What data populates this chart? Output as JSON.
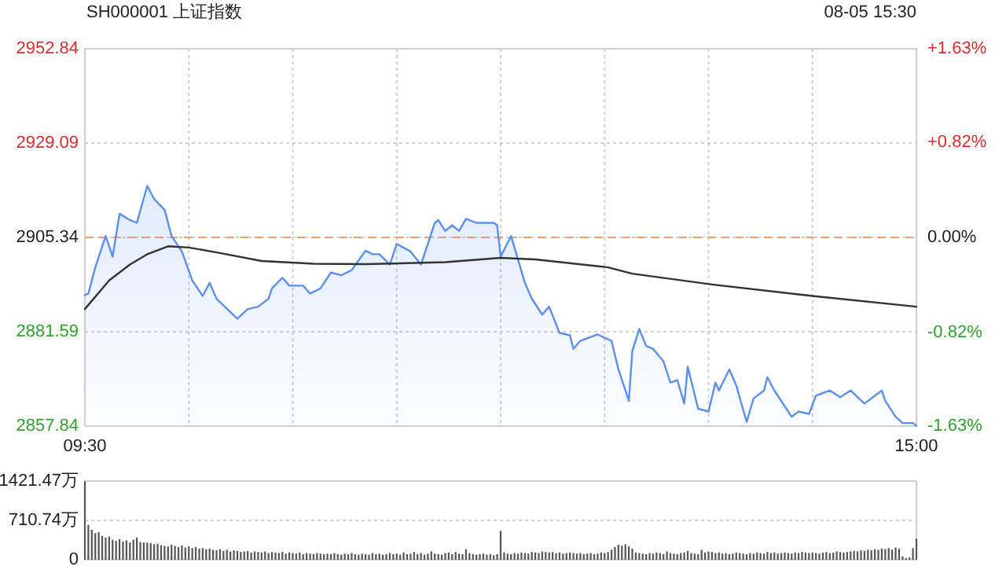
{
  "chart_data": [
    {
      "type": "line",
      "title": "SH000001 上证指数",
      "subtitle": "08-05 15:30",
      "categories": [
        "09:30",
        null,
        null,
        null,
        null,
        null,
        null,
        null,
        null,
        null,
        null,
        null,
        null,
        null,
        null,
        null,
        null,
        null,
        null,
        null,
        null,
        null,
        null,
        null,
        null,
        null,
        null,
        null,
        null,
        null,
        null,
        null,
        null,
        null,
        null,
        null,
        null,
        null,
        null,
        null,
        null,
        null,
        null,
        null,
        null,
        null,
        null,
        null,
        null,
        null,
        null,
        null,
        null,
        null,
        null,
        null,
        null,
        null,
        null,
        null,
        null,
        null,
        null,
        null,
        null,
        null,
        null,
        null,
        null,
        null,
        null,
        null,
        null,
        null,
        null,
        null,
        null,
        null,
        null,
        null,
        null,
        null,
        null,
        null,
        null,
        null,
        null,
        null,
        null,
        null,
        null,
        null,
        null,
        null,
        null,
        null,
        null,
        null,
        null,
        null,
        null,
        null,
        null,
        null,
        null,
        null,
        null,
        null,
        null,
        null,
        null,
        null,
        null,
        null,
        null,
        null,
        null,
        null,
        null,
        null,
        null,
        null,
        null,
        null,
        null,
        null,
        null,
        null,
        null,
        null,
        null,
        null,
        null,
        null,
        null,
        null,
        null,
        null,
        null,
        null,
        null,
        null,
        null,
        null,
        null,
        null,
        null,
        null,
        null,
        null,
        null,
        null,
        null,
        null,
        null,
        null,
        null,
        null,
        null,
        null,
        null,
        null,
        null,
        null,
        null,
        null,
        null,
        null,
        null,
        null,
        null,
        null,
        null,
        null,
        null,
        null,
        null,
        null,
        null,
        null,
        null,
        null,
        null,
        null,
        null,
        null,
        null,
        null,
        null,
        null,
        null,
        null,
        null,
        null,
        null,
        null,
        null,
        null,
        null,
        null,
        null,
        null,
        null,
        null,
        null,
        null,
        null,
        null,
        null,
        null,
        null,
        null,
        null,
        null,
        null,
        null,
        null,
        null,
        null,
        null,
        null,
        null,
        null,
        null,
        null,
        null,
        null,
        null,
        null,
        null,
        null,
        null,
        null,
        null,
        null,
        null,
        null,
        null,
        null,
        null,
        "15:00"
      ],
      "ylim": [
        2857.84,
        2952.84
      ],
      "yticks": [
        2857.84,
        2881.59,
        2905.34,
        2929.09,
        2952.84
      ],
      "y2lim": [
        -1.63,
        1.63
      ],
      "y2ticks": [
        {
          "value": -1.63,
          "label": "-1.63%"
        },
        {
          "value": -0.82,
          "label": "-0.82%"
        },
        {
          "value": 0,
          "label": "0.00%"
        },
        {
          "value": 0.82,
          "label": "+0.82%"
        },
        {
          "value": 1.63,
          "label": "+1.63%"
        }
      ],
      "grid": true,
      "ref_lines": [
        {
          "axis": "y",
          "value": 2905.34,
          "color": "#f0a070",
          "line_style": "dashed"
        }
      ],
      "series": [
        {
          "type": "area",
          "color": "#5b8ff0",
          "values": [
            2890.8,
            2891.2,
            null,
            2897.8,
            null,
            null,
            2905.7,
            null,
            2900.5,
            null,
            2911.3,
            null,
            null,
            2909.7,
            null,
            2909.0,
            null,
            null,
            2918.3,
            null,
            2915.0,
            null,
            null,
            2912.3,
            null,
            2905.7,
            null,
            null,
            2901.8,
            null,
            null,
            2894.5,
            null,
            null,
            2890.6,
            null,
            2893.9,
            null,
            2889.9,
            null,
            null,
            null,
            null,
            null,
            2884.9,
            null,
            null,
            2887.3,
            null,
            null,
            2887.9,
            null,
            null,
            2889.9,
            2892.5,
            null,
            null,
            2895.2,
            null,
            2893.2,
            null,
            null,
            null,
            2893.2,
            null,
            2891.2,
            null,
            null,
            2892.5,
            null,
            null,
            2896.5,
            null,
            null,
            2895.8,
            null,
            null,
            2897.1,
            null,
            null,
            null,
            2902.0,
            null,
            2901.1,
            null,
            2901.1,
            null,
            null,
            2898.5,
            null,
            2903.7,
            null,
            null,
            null,
            2901.8,
            null,
            null,
            2898.5,
            null,
            null,
            null,
            2909.0,
            2909.7,
            null,
            2907.0,
            null,
            2908.4,
            null,
            2907.0,
            null,
            2910.0,
            null,
            null,
            2909.0,
            null,
            null,
            null,
            null,
            2909.0,
            2908.4,
            2900.5,
            null,
            null,
            2905.7,
            null,
            null,
            null,
            2893.9,
            null,
            2889.9,
            null,
            null,
            2885.9,
            null,
            2887.9,
            null,
            null,
            2881.3,
            null,
            null,
            2880.7,
            2877.3,
            null,
            2879.3,
            null,
            null,
            null,
            null,
            2880.9,
            null,
            null,
            null,
            2879.3,
            null,
            2872.1,
            null,
            null,
            2864.2,
            2876.7,
            null,
            2882.3,
            null,
            2878.0,
            null,
            2877.3,
            null,
            null,
            2874.1,
            null,
            2868.8,
            null,
            2869.4,
            null,
            2863.5,
            2872.8,
            null,
            null,
            2862.2,
            null,
            null,
            2861.5,
            null,
            2868.8,
            2866.8,
            null,
            null,
            2872.1,
            null,
            2868.1,
            null,
            null,
            2858.9,
            null,
            2864.8,
            null,
            null,
            2866.8,
            2870.1,
            null,
            2866.8,
            null,
            null,
            null,
            null,
            2860.2,
            null,
            2861.5,
            null,
            null,
            2860.9,
            null,
            2865.5,
            null,
            null,
            null,
            2866.8,
            null,
            null,
            2865.1,
            null,
            null,
            2866.8,
            null,
            null,
            null,
            2863.5,
            null,
            null,
            null,
            null,
            2866.8,
            2864.2,
            null,
            null,
            2860.2,
            null,
            2858.6,
            null,
            null,
            2858.6,
            2857.9
          ]
        },
        {
          "type": "line",
          "color": "#333333",
          "values": [
            2887.3,
            null,
            null,
            null,
            null,
            null,
            null,
            2894.5,
            null,
            null,
            null,
            null,
            null,
            2898.5,
            null,
            null,
            null,
            null,
            2901.1,
            null,
            null,
            null,
            null,
            null,
            2903.1,
            null,
            null,
            null,
            null,
            null,
            2902.8,
            null,
            null,
            null,
            null,
            null,
            null,
            null,
            null,
            2901.4,
            null,
            null,
            null,
            null,
            null,
            null,
            null,
            null,
            null,
            null,
            null,
            2899.4,
            null,
            null,
            null,
            null,
            null,
            null,
            null,
            null,
            null,
            null,
            null,
            null,
            null,
            null,
            2898.7,
            null,
            null,
            null,
            null,
            null,
            null,
            null,
            null,
            null,
            null,
            null,
            null,
            null,
            null,
            2898.6,
            null,
            null,
            null,
            null,
            null,
            null,
            null,
            null,
            null,
            null,
            null,
            null,
            null,
            null,
            null,
            null,
            null,
            null,
            null,
            null,
            null,
            null,
            2899.1,
            null,
            null,
            null,
            null,
            null,
            null,
            null,
            null,
            null,
            null,
            null,
            null,
            null,
            null,
            null,
            2900.2,
            null,
            null,
            null,
            null,
            null,
            null,
            null,
            null,
            null,
            2899.8,
            null,
            null,
            null,
            null,
            null,
            null,
            null,
            null,
            null,
            null,
            null,
            null,
            null,
            null,
            null,
            null,
            null,
            null,
            null,
            null,
            2897.8,
            null,
            null,
            null,
            null,
            null,
            null,
            2896.2,
            null,
            null,
            null,
            null,
            null,
            null,
            null,
            null,
            null,
            null,
            null,
            null,
            null,
            null,
            null,
            null,
            null,
            null,
            null,
            null,
            null,
            null,
            2893.5,
            null,
            null,
            null,
            null,
            null,
            null,
            null,
            null,
            null,
            null,
            null,
            null,
            null,
            null,
            null,
            null,
            null,
            null,
            null,
            null,
            null,
            null,
            null,
            null,
            null,
            null,
            null,
            null,
            2890.6,
            null,
            null,
            null,
            null,
            null,
            null,
            null,
            null,
            null,
            null,
            null,
            null,
            null,
            null,
            null,
            null,
            null,
            null,
            null,
            null,
            null,
            null,
            null,
            null,
            null,
            null,
            null,
            null,
            null,
            2887.9
          ]
        }
      ]
    },
    {
      "type": "bar",
      "color": "#555555",
      "grid": "y",
      "tick_labels": "y",
      "ylim": [
        0,
        1421.47
      ],
      "yticks": [
        0,
        {
          "value": 710.74,
          "label": "710.74万"
        },
        {
          "value": 1421.47,
          "label": "1421.47万"
        }
      ],
      "categories": [
        null,
        null,
        null,
        null,
        null,
        null,
        null,
        null,
        null,
        null,
        null,
        null,
        null,
        null,
        null,
        null,
        null,
        null,
        null,
        null,
        null,
        null,
        null,
        null,
        null,
        null,
        null,
        null,
        null,
        null,
        null,
        null,
        null,
        null,
        null,
        null,
        null,
        null,
        null,
        null,
        null,
        null,
        null,
        null,
        null,
        null,
        null,
        null,
        null,
        null,
        null,
        null,
        null,
        null,
        null,
        null,
        null,
        null,
        null,
        null,
        null,
        null,
        null,
        null,
        null,
        null,
        null,
        null,
        null,
        null,
        null,
        null,
        null,
        null,
        null,
        null,
        null,
        null,
        null,
        null,
        null,
        null,
        null,
        null,
        null,
        null,
        null,
        null,
        null,
        null,
        null,
        null,
        null,
        null,
        null,
        null,
        null,
        null,
        null,
        null,
        null,
        null,
        null,
        null,
        null,
        null,
        null,
        null,
        null,
        null,
        null,
        null,
        null,
        null,
        null,
        null,
        null,
        null,
        null,
        null,
        null,
        null,
        null,
        null,
        null,
        null,
        null,
        null,
        null,
        null,
        null,
        null,
        null,
        null,
        null,
        null,
        null,
        null,
        null,
        null,
        null,
        null,
        null,
        null,
        null,
        null,
        null,
        null,
        null,
        null,
        null,
        null,
        null,
        null,
        null,
        null,
        null,
        null,
        null,
        null,
        null,
        null,
        null,
        null,
        null,
        null,
        null,
        null,
        null,
        null,
        null,
        null,
        null,
        null,
        null,
        null,
        null,
        null,
        null,
        null,
        null,
        null,
        null,
        null,
        null,
        null,
        null,
        null,
        null,
        null,
        null,
        null,
        null,
        null,
        null,
        null,
        null,
        null,
        null,
        null,
        null,
        null,
        null,
        null,
        null,
        null,
        null,
        null,
        null,
        null,
        null,
        null,
        null,
        null,
        null,
        null,
        null,
        null,
        null,
        null,
        null,
        null,
        null,
        null,
        null,
        null,
        null,
        null,
        null,
        null,
        null,
        null,
        null,
        null,
        null,
        null,
        null,
        null,
        null,
        null,
        null
      ],
      "values": [
        1420,
        630,
        540,
        480,
        500,
        430,
        400,
        420,
        360,
        340,
        370,
        330,
        350,
        310,
        360,
        400,
        320,
        310,
        310,
        300,
        280,
        290,
        260,
        250,
        240,
        270,
        250,
        230,
        260,
        220,
        240,
        210,
        230,
        200,
        210,
        190,
        200,
        180,
        170,
        190,
        160,
        180,
        150,
        170,
        160,
        140,
        150,
        160,
        130,
        150,
        140,
        130,
        150,
        120,
        140,
        130,
        120,
        140,
        110,
        130,
        120,
        110,
        130,
        100,
        120,
        110,
        100,
        120,
        110,
        100,
        110,
        100,
        120,
        100,
        90,
        110,
        100,
        120,
        100,
        90,
        110,
        100,
        90,
        120,
        100,
        110,
        90,
        100,
        120,
        100,
        110,
        90,
        130,
        100,
        110,
        140,
        100,
        120,
        90,
        110,
        150,
        110,
        100,
        90,
        120,
        130,
        100,
        140,
        110,
        100,
        190,
        120,
        100,
        90,
        100,
        110,
        90,
        100,
        80,
        100,
        520,
        130,
        110,
        100,
        120,
        110,
        130,
        120,
        110,
        140,
        130,
        120,
        150,
        140,
        130,
        140,
        120,
        130,
        110,
        120,
        130,
        120,
        110,
        120,
        100,
        110,
        120,
        100,
        110,
        130,
        120,
        140,
        180,
        230,
        270,
        250,
        280,
        240,
        200,
        130,
        120,
        110,
        100,
        120,
        110,
        130,
        120,
        100,
        150,
        120,
        110,
        100,
        120,
        130,
        160,
        120,
        110,
        100,
        180,
        130,
        150,
        140,
        120,
        130,
        110,
        120,
        100,
        110,
        130,
        120,
        110,
        100,
        120,
        110,
        130,
        120,
        110,
        140,
        120,
        130,
        110,
        120,
        130,
        120,
        110,
        130,
        120,
        140,
        130,
        120,
        130,
        120,
        110,
        130,
        140,
        120,
        130,
        150,
        140,
        130,
        140,
        150,
        160,
        150,
        170,
        160,
        180,
        170,
        190,
        180,
        200,
        190,
        210,
        180,
        220,
        200,
        60,
        30,
        40,
        210,
        380
      ]
    }
  ]
}
